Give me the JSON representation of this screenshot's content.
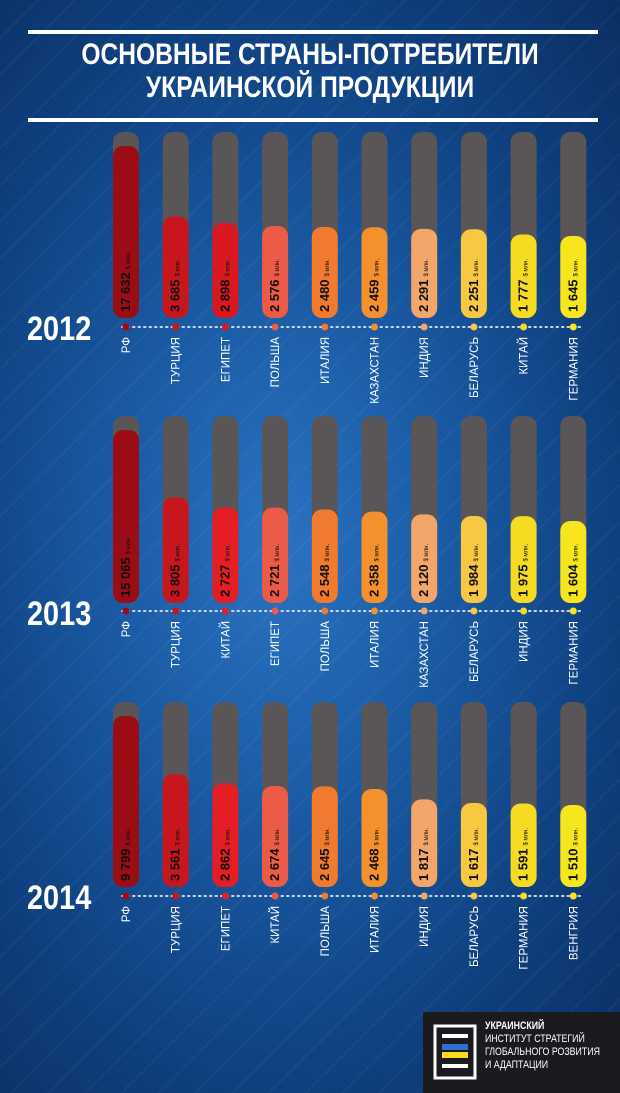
{
  "title": {
    "line1": "ОСНОВНЫЕ СТРАНЫ-ПОТРЕБИТЕЛИ",
    "line2": "УКРАИНСКОЙ ПРОДУКЦИИ"
  },
  "unit_label": "$ млн.",
  "chart_data": [
    {
      "type": "bar",
      "year": "2012",
      "categories": [
        "РФ",
        "ТУРЦИЯ",
        "ЕГИПЕТ",
        "ПОЛЬША",
        "ИТАЛИЯ",
        "КАЗАХСТАН",
        "ИНДИЯ",
        "БЕЛАРУСЬ",
        "КИТАЙ",
        "ГЕРМАНИЯ"
      ],
      "values": [
        17632,
        3685,
        2898,
        2576,
        2480,
        2459,
        2291,
        2251,
        1777,
        1645
      ],
      "labels": [
        "17 632",
        "3 685",
        "2 898",
        "2 576",
        "2 480",
        "2 459",
        "2 291",
        "2 251",
        "1 777",
        "1 645"
      ],
      "colors": [
        "#9a0d14",
        "#c8161e",
        "#d9191f",
        "#ec5a48",
        "#f07a30",
        "#f4902d",
        "#f2a66a",
        "#f7c842",
        "#f5dc22",
        "#f7e61e"
      ]
    },
    {
      "type": "bar",
      "year": "2013",
      "categories": [
        "РФ",
        "ТУРЦИЯ",
        "КИТАЙ",
        "ЕГИПЕТ",
        "ПОЛЬША",
        "ИТАЛИЯ",
        "КАЗАХСТАН",
        "БЕЛАРУСЬ",
        "ИНДИЯ",
        "ГЕРМАНИЯ"
      ],
      "values": [
        15065,
        3805,
        2727,
        2721,
        2548,
        2358,
        2120,
        1984,
        1975,
        1604
      ],
      "labels": [
        "15 065",
        "3 805",
        "2 727",
        "2 721",
        "2 548",
        "2 358",
        "2 120",
        "1 984",
        "1 975",
        "1 604"
      ],
      "colors": [
        "#9a0d14",
        "#c8161e",
        "#e51d24",
        "#ec5a48",
        "#f07a30",
        "#f4902d",
        "#f2a66a",
        "#f7c842",
        "#f5dc22",
        "#f7e61e"
      ]
    },
    {
      "type": "bar",
      "year": "2014",
      "categories": [
        "РФ",
        "ТУРЦИЯ",
        "ЕГИПЕТ",
        "КИТАЙ",
        "ПОЛЬША",
        "ИТАЛИЯ",
        "ИНДИЯ",
        "БЕЛАРУСЬ",
        "ГЕРМАНИЯ",
        "ВЕНГРИЯ"
      ],
      "values": [
        9799,
        3561,
        2862,
        2674,
        2645,
        2468,
        1817,
        1617,
        1591,
        1510
      ],
      "labels": [
        "9 799",
        "3 561",
        "2 862",
        "2 674",
        "2 645",
        "2 468",
        "1 817",
        "1 617",
        "1 591",
        "1 510"
      ],
      "colors": [
        "#9a0d14",
        "#c8161e",
        "#e51d24",
        "#ec5a48",
        "#f07a30",
        "#f4902d",
        "#f2a66a",
        "#f7c842",
        "#f5dc22",
        "#f7e61e"
      ]
    }
  ],
  "logo": {
    "line1": "УКРАИНСКИЙ",
    "line2": "ИНСТИТУТ СТРАТЕГИЙ",
    "line3": "ГЛОБАЛЬНОГО РОЗВИТИЯ",
    "line4": "И АДАПТАЦИИ"
  },
  "colors": {
    "track": "#5a5658",
    "dot_line": "#c9d6ea",
    "background": "#1a5aa3"
  }
}
